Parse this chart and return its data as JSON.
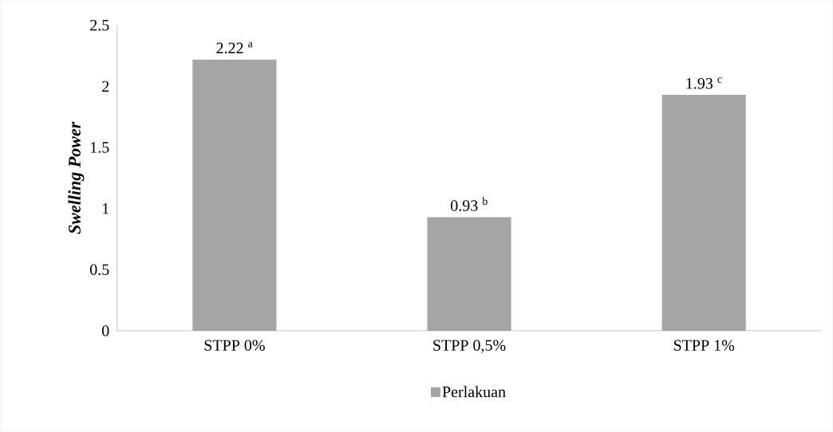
{
  "chart_data": {
    "type": "bar",
    "ylabel": "Swelling Power",
    "categories": [
      "STPP 0%",
      "STPP 0,5%",
      "STPP 1%"
    ],
    "series": [
      {
        "name": "Perlakuan",
        "color": "#a5a5a5",
        "values": [
          2.22,
          0.93,
          1.93
        ],
        "value_labels": [
          "2.22 $^{a}$",
          "0.93 $^{b}$",
          "1.93 $^{c}$"
        ]
      }
    ],
    "ylim": [
      0,
      2.5
    ],
    "yticks": [
      0,
      0.5,
      1,
      1.5,
      2,
      2.5
    ],
    "grid": false,
    "legend": "bottom"
  }
}
